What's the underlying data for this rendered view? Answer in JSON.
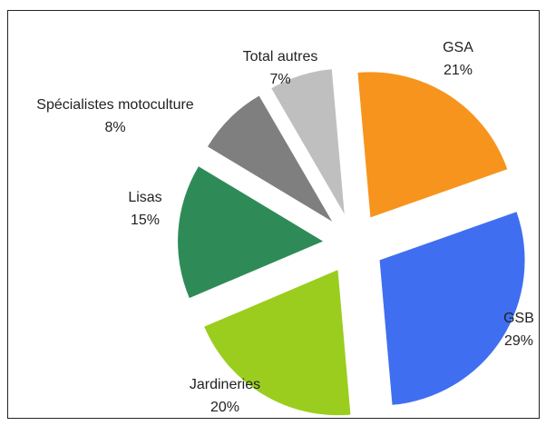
{
  "chart_data": {
    "type": "pie",
    "title": "",
    "slices": [
      {
        "name": "GSA",
        "value": 21,
        "label": "21%",
        "color": "#F7941D"
      },
      {
        "name": "GSB",
        "value": 29,
        "label": "29%",
        "color": "#3F6FF0"
      },
      {
        "name": "Jardineries",
        "value": 20,
        "label": "20%",
        "color": "#9ACD1E"
      },
      {
        "name": "Lisas",
        "value": 15,
        "label": "15%",
        "color": "#2E8B57"
      },
      {
        "name": "Spécialistes motoculture",
        "value": 8,
        "label": "8%",
        "color": "#7F7F7F"
      },
      {
        "name": "Total autres",
        "value": 7,
        "label": "7%",
        "color": "#BFBFBF"
      }
    ],
    "legend": "none"
  }
}
